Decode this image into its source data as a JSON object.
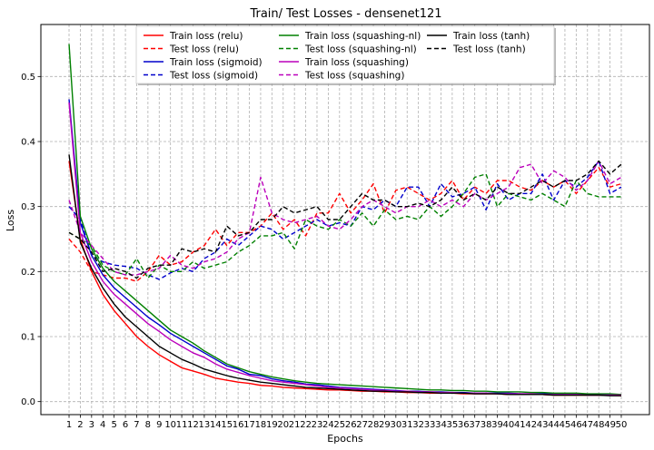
{
  "chart_data": {
    "type": "line",
    "title": "Train/ Test Losses - densenet121",
    "xlabel": "Epochs",
    "ylabel": "Loss",
    "xlim": [
      -1.5,
      52.5
    ],
    "ylim": [
      -0.02,
      0.58
    ],
    "xticks": [
      1,
      2,
      3,
      4,
      5,
      6,
      7,
      8,
      9,
      10,
      11,
      12,
      13,
      14,
      15,
      16,
      17,
      18,
      19,
      20,
      21,
      22,
      23,
      24,
      25,
      26,
      27,
      28,
      29,
      30,
      31,
      32,
      33,
      34,
      35,
      36,
      37,
      38,
      39,
      40,
      41,
      42,
      43,
      44,
      45,
      46,
      47,
      48,
      49,
      50
    ],
    "yticks": [
      0.0,
      0.1,
      0.2,
      0.3,
      0.4,
      0.5
    ],
    "ytick_labels": [
      "0.0",
      "0.1",
      "0.2",
      "0.3",
      "0.4",
      "0.5"
    ],
    "grid": true,
    "legend_position": "upper-center",
    "legend_columns": 3,
    "x": [
      1,
      2,
      3,
      4,
      5,
      6,
      7,
      8,
      9,
      10,
      11,
      12,
      13,
      14,
      15,
      16,
      17,
      18,
      19,
      20,
      21,
      22,
      23,
      24,
      25,
      26,
      27,
      28,
      29,
      30,
      31,
      32,
      33,
      34,
      35,
      36,
      37,
      38,
      39,
      40,
      41,
      42,
      43,
      44,
      45,
      46,
      47,
      48,
      49,
      50
    ],
    "series": [
      {
        "name": "Train loss (relu)",
        "color": "#ff0000",
        "dash": "solid",
        "values": [
          0.37,
          0.25,
          0.2,
          0.165,
          0.14,
          0.12,
          0.1,
          0.085,
          0.072,
          0.062,
          0.052,
          0.047,
          0.042,
          0.036,
          0.033,
          0.03,
          0.028,
          0.025,
          0.024,
          0.022,
          0.021,
          0.02,
          0.019,
          0.018,
          0.018,
          0.017,
          0.016,
          0.016,
          0.015,
          0.015,
          0.014,
          0.014,
          0.013,
          0.013,
          0.013,
          0.012,
          0.012,
          0.012,
          0.012,
          0.011,
          0.011,
          0.011,
          0.011,
          0.01,
          0.01,
          0.01,
          0.01,
          0.01,
          0.01,
          0.009
        ]
      },
      {
        "name": "Test loss (relu)",
        "color": "#ff0000",
        "dash": "dashed",
        "values": [
          0.25,
          0.23,
          0.2,
          0.195,
          0.19,
          0.19,
          0.185,
          0.2,
          0.225,
          0.21,
          0.215,
          0.23,
          0.24,
          0.265,
          0.24,
          0.26,
          0.26,
          0.27,
          0.29,
          0.265,
          0.28,
          0.255,
          0.29,
          0.29,
          0.32,
          0.29,
          0.31,
          0.335,
          0.29,
          0.325,
          0.33,
          0.32,
          0.31,
          0.32,
          0.34,
          0.31,
          0.33,
          0.32,
          0.34,
          0.34,
          0.33,
          0.325,
          0.34,
          0.33,
          0.34,
          0.32,
          0.34,
          0.36,
          0.33,
          0.335
        ]
      },
      {
        "name": "Train loss (sigmoid)",
        "color": "#0000cc",
        "dash": "solid",
        "values": [
          0.465,
          0.275,
          0.225,
          0.195,
          0.175,
          0.16,
          0.145,
          0.13,
          0.118,
          0.105,
          0.095,
          0.085,
          0.075,
          0.065,
          0.055,
          0.05,
          0.042,
          0.04,
          0.035,
          0.032,
          0.03,
          0.027,
          0.026,
          0.024,
          0.022,
          0.021,
          0.02,
          0.019,
          0.018,
          0.017,
          0.016,
          0.016,
          0.015,
          0.015,
          0.014,
          0.014,
          0.013,
          0.013,
          0.013,
          0.013,
          0.012,
          0.012,
          0.012,
          0.012,
          0.011,
          0.011,
          0.011,
          0.011,
          0.011,
          0.01
        ]
      },
      {
        "name": "Test loss (sigmoid)",
        "color": "#0000cc",
        "dash": "dashed",
        "values": [
          0.3,
          0.28,
          0.225,
          0.215,
          0.21,
          0.208,
          0.205,
          0.195,
          0.188,
          0.198,
          0.205,
          0.2,
          0.22,
          0.23,
          0.25,
          0.24,
          0.255,
          0.27,
          0.265,
          0.25,
          0.26,
          0.27,
          0.28,
          0.27,
          0.275,
          0.27,
          0.3,
          0.295,
          0.31,
          0.3,
          0.33,
          0.33,
          0.3,
          0.335,
          0.315,
          0.32,
          0.33,
          0.295,
          0.335,
          0.31,
          0.32,
          0.32,
          0.35,
          0.31,
          0.34,
          0.33,
          0.345,
          0.37,
          0.32,
          0.33
        ]
      },
      {
        "name": "Train loss (squashing-nl)",
        "color": "#008000",
        "dash": "solid",
        "values": [
          0.55,
          0.285,
          0.235,
          0.205,
          0.185,
          0.17,
          0.155,
          0.14,
          0.125,
          0.11,
          0.1,
          0.09,
          0.078,
          0.068,
          0.058,
          0.052,
          0.046,
          0.042,
          0.038,
          0.035,
          0.032,
          0.03,
          0.028,
          0.027,
          0.026,
          0.025,
          0.024,
          0.023,
          0.022,
          0.021,
          0.02,
          0.019,
          0.018,
          0.018,
          0.017,
          0.017,
          0.016,
          0.016,
          0.015,
          0.015,
          0.015,
          0.014,
          0.014,
          0.013,
          0.013,
          0.013,
          0.012,
          0.012,
          0.012,
          0.011
        ]
      },
      {
        "name": "Test loss (squashing-nl)",
        "color": "#008000",
        "dash": "dashed",
        "values": [
          0.26,
          0.25,
          0.24,
          0.21,
          0.2,
          0.195,
          0.22,
          0.19,
          0.21,
          0.2,
          0.2,
          0.215,
          0.205,
          0.21,
          0.215,
          0.23,
          0.24,
          0.255,
          0.255,
          0.26,
          0.235,
          0.28,
          0.27,
          0.265,
          0.28,
          0.27,
          0.29,
          0.27,
          0.295,
          0.28,
          0.285,
          0.28,
          0.3,
          0.285,
          0.3,
          0.32,
          0.345,
          0.35,
          0.3,
          0.32,
          0.315,
          0.31,
          0.32,
          0.31,
          0.3,
          0.34,
          0.32,
          0.315,
          0.315,
          0.315
        ]
      },
      {
        "name": "Train loss (squashing)",
        "color": "#bb00bb",
        "dash": "solid",
        "values": [
          0.46,
          0.26,
          0.215,
          0.185,
          0.165,
          0.15,
          0.135,
          0.12,
          0.108,
          0.095,
          0.085,
          0.075,
          0.068,
          0.058,
          0.05,
          0.045,
          0.04,
          0.036,
          0.032,
          0.03,
          0.028,
          0.026,
          0.024,
          0.022,
          0.021,
          0.02,
          0.019,
          0.018,
          0.017,
          0.016,
          0.016,
          0.015,
          0.015,
          0.014,
          0.014,
          0.013,
          0.013,
          0.013,
          0.012,
          0.012,
          0.012,
          0.012,
          0.011,
          0.011,
          0.011,
          0.011,
          0.01,
          0.01,
          0.01,
          0.01
        ]
      },
      {
        "name": "Test loss (squashing)",
        "color": "#bb00bb",
        "dash": "dashed",
        "values": [
          0.31,
          0.26,
          0.24,
          0.22,
          0.2,
          0.195,
          0.195,
          0.2,
          0.205,
          0.225,
          0.21,
          0.205,
          0.215,
          0.22,
          0.23,
          0.25,
          0.26,
          0.345,
          0.29,
          0.28,
          0.275,
          0.28,
          0.285,
          0.27,
          0.265,
          0.28,
          0.3,
          0.31,
          0.3,
          0.29,
          0.3,
          0.3,
          0.31,
          0.3,
          0.31,
          0.3,
          0.32,
          0.31,
          0.32,
          0.33,
          0.36,
          0.365,
          0.335,
          0.355,
          0.345,
          0.325,
          0.34,
          0.37,
          0.335,
          0.345
        ]
      },
      {
        "name": "Train loss (tanh)",
        "color": "#000000",
        "dash": "solid",
        "values": [
          0.38,
          0.245,
          0.205,
          0.175,
          0.15,
          0.13,
          0.115,
          0.1,
          0.085,
          0.075,
          0.065,
          0.058,
          0.05,
          0.045,
          0.04,
          0.036,
          0.033,
          0.03,
          0.028,
          0.026,
          0.024,
          0.022,
          0.021,
          0.02,
          0.019,
          0.018,
          0.017,
          0.016,
          0.016,
          0.015,
          0.015,
          0.014,
          0.014,
          0.013,
          0.013,
          0.013,
          0.012,
          0.012,
          0.012,
          0.011,
          0.011,
          0.011,
          0.011,
          0.01,
          0.01,
          0.01,
          0.01,
          0.01,
          0.009,
          0.009
        ]
      },
      {
        "name": "Test loss (tanh)",
        "color": "#000000",
        "dash": "dashed",
        "values": [
          0.26,
          0.25,
          0.23,
          0.2,
          0.205,
          0.2,
          0.19,
          0.205,
          0.21,
          0.21,
          0.235,
          0.23,
          0.235,
          0.23,
          0.27,
          0.255,
          0.26,
          0.28,
          0.28,
          0.3,
          0.29,
          0.295,
          0.3,
          0.28,
          0.28,
          0.3,
          0.32,
          0.31,
          0.31,
          0.3,
          0.3,
          0.305,
          0.3,
          0.31,
          0.33,
          0.31,
          0.32,
          0.31,
          0.33,
          0.32,
          0.32,
          0.33,
          0.34,
          0.33,
          0.34,
          0.34,
          0.35,
          0.37,
          0.35,
          0.365
        ]
      }
    ]
  }
}
